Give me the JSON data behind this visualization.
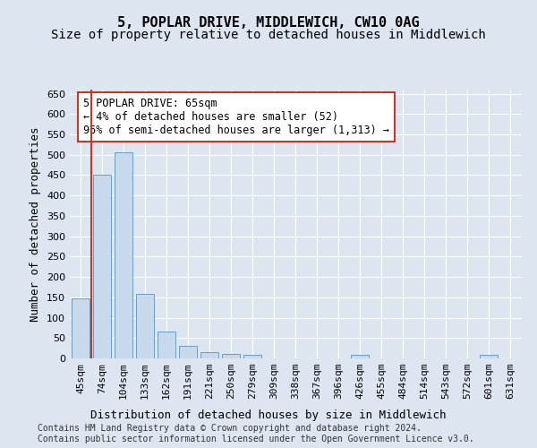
{
  "title1": "5, POPLAR DRIVE, MIDDLEWICH, CW10 0AG",
  "title2": "Size of property relative to detached houses in Middlewich",
  "xlabel": "Distribution of detached houses by size in Middlewich",
  "ylabel": "Number of detached properties",
  "categories": [
    "45sqm",
    "74sqm",
    "104sqm",
    "133sqm",
    "162sqm",
    "191sqm",
    "221sqm",
    "250sqm",
    "279sqm",
    "309sqm",
    "338sqm",
    "367sqm",
    "396sqm",
    "426sqm",
    "455sqm",
    "484sqm",
    "514sqm",
    "543sqm",
    "572sqm",
    "601sqm",
    "631sqm"
  ],
  "values": [
    148,
    450,
    507,
    158,
    67,
    30,
    15,
    10,
    8,
    0,
    0,
    0,
    0,
    8,
    0,
    0,
    0,
    0,
    0,
    8,
    0
  ],
  "bar_color": "#c9d9ec",
  "bar_edge_color": "#6a9ec5",
  "vline_color": "#c0392b",
  "vline_x_idx": 0.5,
  "annotation_text": "5 POPLAR DRIVE: 65sqm\n← 4% of detached houses are smaller (52)\n96% of semi-detached houses are larger (1,313) →",
  "annotation_box_facecolor": "white",
  "annotation_box_edgecolor": "#c0392b",
  "ylim": [
    0,
    660
  ],
  "yticks": [
    0,
    50,
    100,
    150,
    200,
    250,
    300,
    350,
    400,
    450,
    500,
    550,
    600,
    650
  ],
  "background_color": "#dde5f0",
  "grid_color": "white",
  "footer_text": "Contains HM Land Registry data © Crown copyright and database right 2024.\nContains public sector information licensed under the Open Government Licence v3.0.",
  "title1_fontsize": 11,
  "title2_fontsize": 10,
  "xlabel_fontsize": 9,
  "ylabel_fontsize": 9,
  "tick_fontsize": 8,
  "annotation_fontsize": 8.5,
  "footer_fontsize": 7
}
